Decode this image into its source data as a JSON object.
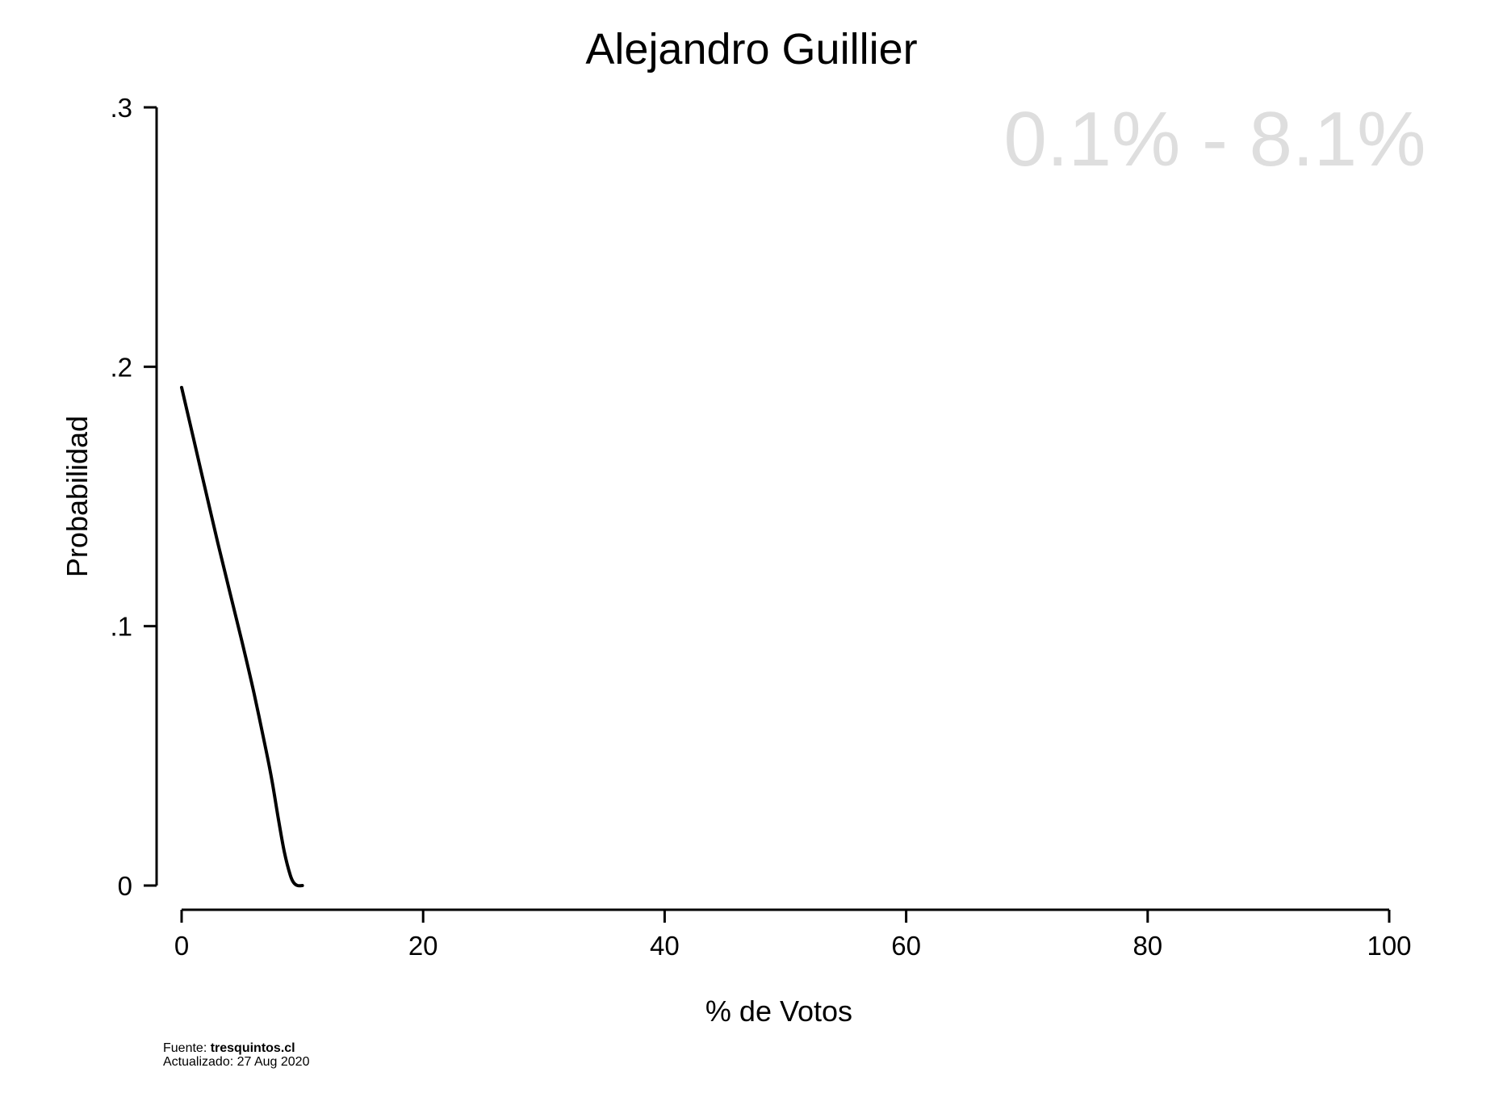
{
  "chart_data": {
    "type": "line",
    "title": "Alejandro Guillier",
    "annotation": "0.1% - 8.1%",
    "xlabel": "% de Votos",
    "ylabel": "Probabilidad",
    "xlim": [
      0,
      100
    ],
    "ylim": [
      0,
      0.3
    ],
    "xticks": [
      0,
      20,
      40,
      60,
      80,
      100
    ],
    "xtick_labels": [
      "0",
      "20",
      "40",
      "60",
      "80",
      "100"
    ],
    "yticks": [
      0,
      0.1,
      0.2,
      0.3
    ],
    "ytick_labels": [
      "0",
      ".1",
      ".2",
      ".3"
    ],
    "grid": false,
    "legend": "none",
    "line_color": "#000000",
    "annotation_color": "#dedede",
    "series": [
      {
        "x": [
          0,
          1,
          2,
          3,
          4,
          5,
          6,
          7,
          7.5,
          8,
          8.5,
          9,
          9.3,
          9.6,
          10
        ],
        "values": [
          0.192,
          0.172,
          0.152,
          0.132,
          0.113,
          0.094,
          0.074,
          0.052,
          0.04,
          0.026,
          0.013,
          0.004,
          0.001,
          0.0,
          0.0
        ]
      }
    ]
  },
  "footer": {
    "source_prefix": "Fuente: ",
    "source_name": "tresquintos.cl",
    "updated": "Actualizado: 27 Aug 2020"
  }
}
